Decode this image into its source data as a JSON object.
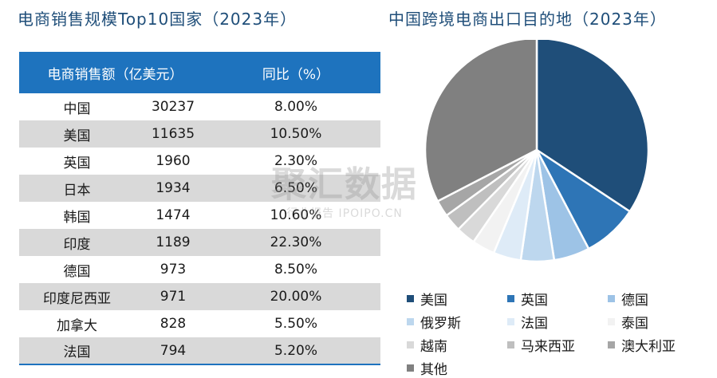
{
  "left_title": "电商销售规模Top10国家（2023年）",
  "right_title": "中国跨境电商出口目的地（2023年）",
  "watermark": {
    "main": "聚汇数据",
    "sub": "行业报告 IPOIPO.CN"
  },
  "chart_data": [
    {
      "type": "table",
      "title": "电商销售规模Top10国家（2023年）",
      "columns": [
        "",
        "电商销售额（亿美元）",
        "同比（%）"
      ],
      "rows": [
        {
          "country": "中国",
          "sales": "30237",
          "yoy": "8.00%"
        },
        {
          "country": "美国",
          "sales": "11635",
          "yoy": "10.50%"
        },
        {
          "country": "英国",
          "sales": "1960",
          "yoy": "2.30%"
        },
        {
          "country": "日本",
          "sales": "1934",
          "yoy": "6.50%"
        },
        {
          "country": "韩国",
          "sales": "1474",
          "yoy": "10.60%"
        },
        {
          "country": "印度",
          "sales": "1189",
          "yoy": "22.30%"
        },
        {
          "country": "德国",
          "sales": "973",
          "yoy": "8.50%"
        },
        {
          "country": "印度尼西亚",
          "sales": "971",
          "yoy": "20.00%"
        },
        {
          "country": "加拿大",
          "sales": "828",
          "yoy": "5.50%"
        },
        {
          "country": "法国",
          "sales": "794",
          "yoy": "5.20%"
        }
      ]
    },
    {
      "type": "pie",
      "title": "中国跨境电商出口目的地（2023年）",
      "legend_position": "bottom",
      "slices": [
        {
          "name": "美国",
          "value": 34.3,
          "color": "#1f4e79"
        },
        {
          "name": "英国",
          "value": 8.0,
          "color": "#2e75b6"
        },
        {
          "name": "德国",
          "value": 5.2,
          "color": "#9dc3e6"
        },
        {
          "name": "俄罗斯",
          "value": 4.8,
          "color": "#bdd7ee"
        },
        {
          "name": "法国",
          "value": 4.0,
          "color": "#deebf7"
        },
        {
          "name": "泰国",
          "value": 3.3,
          "color": "#f2f2f2"
        },
        {
          "name": "越南",
          "value": 2.8,
          "color": "#d9d9d9"
        },
        {
          "name": "马来西亚",
          "value": 2.6,
          "color": "#bfbfbf"
        },
        {
          "name": "澳大利亚",
          "value": 2.4,
          "color": "#a6a6a6"
        },
        {
          "name": "其他",
          "value": 32.6,
          "color": "#808080"
        }
      ]
    }
  ]
}
